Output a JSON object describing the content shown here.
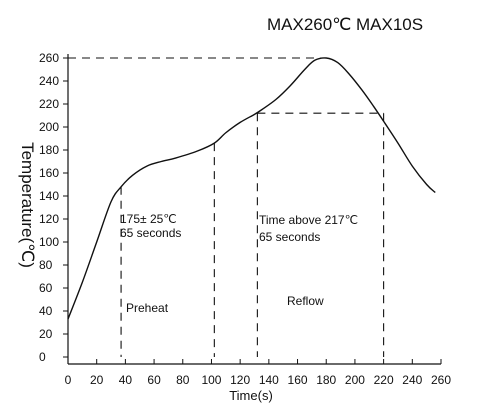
{
  "chart_data": {
    "type": "line",
    "title": "MAX260℃ MAX10S",
    "xlabel": "Time(s)",
    "ylabel": "Temperature(℃)",
    "xlim": [
      0,
      260
    ],
    "ylim": [
      0,
      260
    ],
    "x_ticks": [
      "0",
      "20",
      "40",
      "60",
      "80",
      "100",
      "120",
      "140",
      "160",
      "180",
      "200",
      "220",
      "240",
      "260"
    ],
    "y_ticks": [
      "0",
      "20",
      "40",
      "60",
      "80",
      "100",
      "120",
      "140",
      "160",
      "180",
      "200",
      "220",
      "240",
      "260"
    ],
    "series": [
      {
        "points": [
          [
            0,
            33
          ],
          [
            10,
            65
          ],
          [
            20,
            100
          ],
          [
            30,
            135
          ],
          [
            37,
            148
          ],
          [
            45,
            158
          ],
          [
            55,
            166
          ],
          [
            65,
            170
          ],
          [
            75,
            173
          ],
          [
            90,
            179
          ],
          [
            102,
            186
          ],
          [
            110,
            195
          ],
          [
            120,
            204
          ],
          [
            130,
            211
          ],
          [
            135,
            215
          ],
          [
            145,
            224
          ],
          [
            155,
            236
          ],
          [
            165,
            250
          ],
          [
            172,
            258
          ],
          [
            180,
            260
          ],
          [
            188,
            256
          ],
          [
            196,
            246
          ],
          [
            205,
            232
          ],
          [
            213,
            218
          ],
          [
            220,
            205
          ],
          [
            230,
            186
          ],
          [
            240,
            166
          ],
          [
            250,
            150
          ],
          [
            256,
            143
          ]
        ]
      }
    ],
    "reference_lines": {
      "peak_temperature": 260,
      "peak_time": 180,
      "reflow_temperature": 212,
      "preheat_start_time": 37,
      "preheat_end_time": 102,
      "reflow_start_time": 132,
      "reflow_end_time": 220
    },
    "annotations": {
      "preheat_condition_line1": "175± 25℃",
      "preheat_condition_line2": "65 seconds",
      "preheat_label": "Preheat",
      "reflow_condition_line1": "Time above 217℃",
      "reflow_condition_line2": "65 seconds",
      "reflow_label": "Reflow"
    },
    "grid": false,
    "legend": "none",
    "line_color": "#111111"
  }
}
